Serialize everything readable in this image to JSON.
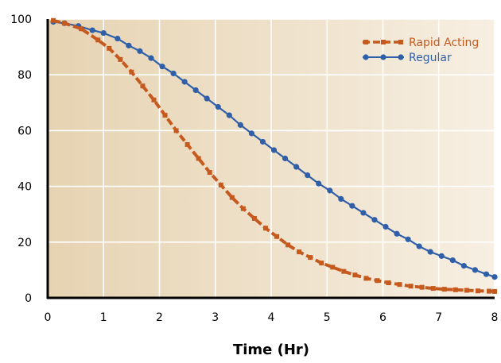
{
  "chart_data": {
    "type": "line",
    "title": "",
    "xlabel": "Time (Hr)",
    "ylabel": "",
    "xlim": [
      0,
      8
    ],
    "ylim": [
      0,
      100
    ],
    "xticks": [
      "0",
      "1",
      "2",
      "3",
      "4",
      "5",
      "6",
      "7",
      "8"
    ],
    "yticks": [
      "0",
      "20",
      "40",
      "60",
      "80",
      "100"
    ],
    "grid": true,
    "legend_position": "top-right",
    "series": [
      {
        "name": "Rapid Acting",
        "color": "#c65a1e",
        "marker": "square",
        "line_style": "dashed",
        "x": [
          0.1,
          0.3,
          0.6,
          0.9,
          1.1,
          1.3,
          1.5,
          1.7,
          1.9,
          2.1,
          2.3,
          2.5,
          2.7,
          2.9,
          3.1,
          3.3,
          3.5,
          3.7,
          3.9,
          4.1,
          4.3,
          4.5,
          4.7,
          4.9,
          5.1,
          5.3,
          5.5,
          5.7,
          5.9,
          6.1,
          6.3,
          6.5,
          6.7,
          6.9,
          7.1,
          7.3,
          7.5,
          7.7,
          7.9,
          8.0
        ],
        "y": [
          99.5,
          98.5,
          96.5,
          92.5,
          89.5,
          85.5,
          81.0,
          76.0,
          71.0,
          65.5,
          60.0,
          55.0,
          50.0,
          45.0,
          40.5,
          36.0,
          32.0,
          28.5,
          25.0,
          22.0,
          19.0,
          16.5,
          14.5,
          12.5,
          11.0,
          9.5,
          8.2,
          7.0,
          6.2,
          5.4,
          4.8,
          4.2,
          3.8,
          3.4,
          3.1,
          2.9,
          2.7,
          2.5,
          2.4,
          2.3
        ]
      },
      {
        "name": "Regular",
        "color": "#2f5fa8",
        "marker": "circle",
        "line_style": "solid",
        "x": [
          0.1,
          0.3,
          0.55,
          0.8,
          1.0,
          1.25,
          1.45,
          1.65,
          1.85,
          2.05,
          2.25,
          2.45,
          2.65,
          2.85,
          3.05,
          3.25,
          3.45,
          3.65,
          3.85,
          4.05,
          4.25,
          4.45,
          4.65,
          4.85,
          5.05,
          5.25,
          5.45,
          5.65,
          5.85,
          6.05,
          6.25,
          6.45,
          6.65,
          6.85,
          7.05,
          7.25,
          7.45,
          7.65,
          7.85,
          8.0
        ],
        "y": [
          99.0,
          98.5,
          97.5,
          96.0,
          95.0,
          93.0,
          90.5,
          88.5,
          86.0,
          83.0,
          80.5,
          77.5,
          74.5,
          71.5,
          68.5,
          65.5,
          62.0,
          59.0,
          56.0,
          53.0,
          50.0,
          47.0,
          44.0,
          41.0,
          38.5,
          35.5,
          33.0,
          30.5,
          28.0,
          25.5,
          23.0,
          21.0,
          18.5,
          16.5,
          15.0,
          13.5,
          11.5,
          10.0,
          8.5,
          7.5
        ]
      }
    ]
  }
}
